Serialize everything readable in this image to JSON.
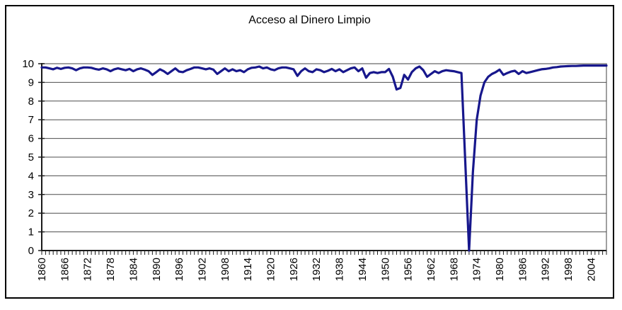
{
  "window": {
    "background_color": "#ffffff",
    "frame_border_color": "#000000"
  },
  "chart_data": {
    "type": "line",
    "title": "Acceso al Dinero Limpio",
    "xlabel": "",
    "ylabel": "",
    "legend": "none",
    "grid": "horizontal",
    "ylim": [
      0,
      10
    ],
    "yticks": [
      0,
      1,
      2,
      3,
      4,
      5,
      6,
      7,
      8,
      9,
      10
    ],
    "x_range": {
      "start": 1860,
      "end": 2008,
      "step": 1
    },
    "xtick_labels": [
      "1860",
      "1866",
      "1872",
      "1878",
      "1884",
      "1890",
      "1896",
      "1902",
      "1908",
      "1914",
      "1920",
      "1926",
      "1932",
      "1938",
      "1944",
      "1950",
      "1956",
      "1962",
      "1968",
      "1974",
      "1980",
      "1986",
      "1992",
      "1998",
      "2004"
    ],
    "xtick_label_step": 6,
    "minor_tick_every_year": true,
    "series": [
      {
        "name": "Acceso al Dinero Limpio",
        "color": "#17178c",
        "values": [
          9.8,
          9.8,
          9.75,
          9.7,
          9.78,
          9.72,
          9.78,
          9.8,
          9.75,
          9.65,
          9.75,
          9.8,
          9.8,
          9.78,
          9.72,
          9.68,
          9.75,
          9.7,
          9.6,
          9.7,
          9.75,
          9.7,
          9.65,
          9.72,
          9.6,
          9.7,
          9.75,
          9.68,
          9.6,
          9.4,
          9.55,
          9.7,
          9.6,
          9.45,
          9.6,
          9.75,
          9.58,
          9.55,
          9.65,
          9.72,
          9.8,
          9.8,
          9.75,
          9.7,
          9.75,
          9.68,
          9.45,
          9.6,
          9.75,
          9.6,
          9.7,
          9.6,
          9.65,
          9.55,
          9.7,
          9.78,
          9.8,
          9.85,
          9.75,
          9.8,
          9.7,
          9.65,
          9.75,
          9.8,
          9.8,
          9.75,
          9.7,
          9.35,
          9.6,
          9.75,
          9.6,
          9.55,
          9.7,
          9.65,
          9.55,
          9.62,
          9.72,
          9.6,
          9.7,
          9.55,
          9.65,
          9.75,
          9.8,
          9.6,
          9.75,
          9.25,
          9.5,
          9.55,
          9.5,
          9.55,
          9.55,
          9.72,
          9.3,
          8.62,
          8.7,
          9.4,
          9.15,
          9.55,
          9.75,
          9.85,
          9.65,
          9.3,
          9.45,
          9.6,
          9.5,
          9.6,
          9.65,
          9.62,
          9.6,
          9.55,
          9.5,
          4.75,
          0.0,
          4.2,
          7.0,
          8.3,
          9.0,
          9.3,
          9.45,
          9.55,
          9.68,
          9.4,
          9.5,
          9.58,
          9.62,
          9.45,
          9.6,
          9.5,
          9.55,
          9.6,
          9.65,
          9.7,
          9.72,
          9.75,
          9.8,
          9.82,
          9.85,
          9.86,
          9.87,
          9.88,
          9.88,
          9.89,
          9.9,
          9.9,
          9.9,
          9.9,
          9.9,
          9.9,
          9.9
        ]
      }
    ],
    "colors": {
      "line": "#17178c",
      "gridline": "#4d4d4d",
      "axis": "#1a1a1a",
      "plot_border": "#808080",
      "tick_label": "#000000"
    }
  }
}
